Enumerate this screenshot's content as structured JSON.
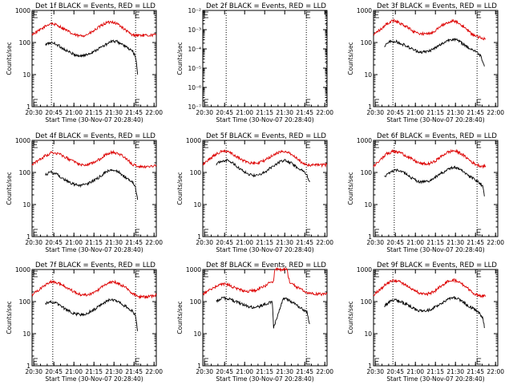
{
  "figure": {
    "ylabel": "Counts/sec",
    "xlabel": "Start Time (30-Nov-07 20:28:40)",
    "x_tick_labels": [
      "20:30",
      "20:45",
      "21:00",
      "21:15",
      "21:30",
      "21:45",
      "22:00"
    ],
    "series_colors": {
      "events": "#000000",
      "lld": "#dd0000"
    }
  },
  "chart_data": [
    {
      "type": "line",
      "title": "Det 1f BLACK = Events, RED = LLD",
      "yscale": "log",
      "ylim": [
        1,
        1000
      ],
      "y_tick_labels": [
        "1",
        "10",
        "100",
        "1000"
      ],
      "xlim_minutes": [
        0,
        93
      ],
      "markers": {
        "vlines": [
          14.5,
          77.5
        ],
        "brackets": [
          0,
          77.5
        ]
      },
      "series": [
        {
          "key": "lld",
          "color": "#dd0000",
          "x": [
            0,
            5,
            10,
            14,
            20,
            25,
            30,
            35,
            40,
            45,
            50,
            55,
            60,
            65,
            70,
            75,
            77,
            80,
            85,
            90,
            93
          ],
          "y": [
            180,
            230,
            320,
            400,
            330,
            250,
            185,
            160,
            170,
            210,
            300,
            400,
            450,
            360,
            240,
            170,
            170,
            170,
            165,
            170,
            175
          ]
        },
        {
          "key": "events",
          "color": "#000000",
          "x": [
            10,
            14,
            18,
            22,
            26,
            30,
            35,
            40,
            45,
            50,
            55,
            60,
            64,
            68,
            72,
            75,
            77,
            78,
            79
          ],
          "y": [
            85,
            100,
            90,
            70,
            55,
            45,
            38,
            40,
            50,
            65,
            85,
            110,
            105,
            85,
            65,
            55,
            40,
            25,
            10
          ]
        }
      ]
    },
    {
      "type": "line",
      "title": "Det 2f BLACK = Events, RED = LLD",
      "yscale": "log",
      "ylim": [
        1e-07,
        0.01
      ],
      "y_tick_labels": [
        "10⁻²",
        "10⁻³",
        "10⁻⁴",
        "10⁻⁵",
        "10⁻⁶",
        "10⁻⁷"
      ],
      "xlim_minutes": [
        0,
        93
      ],
      "markers": {
        "vlines": [
          17.5,
          77.5,
          92.5
        ],
        "brackets": [
          0,
          77.5
        ]
      },
      "series": []
    },
    {
      "type": "line",
      "title": "Det 3f BLACK = Events, RED = LLD",
      "yscale": "log",
      "ylim": [
        1,
        1000
      ],
      "y_tick_labels": [
        "1",
        "10",
        "100",
        "1000"
      ],
      "xlim_minutes": [
        0,
        93
      ],
      "markers": {
        "vlines": [
          14.5,
          77.5
        ],
        "brackets": [
          0,
          77.5
        ]
      },
      "series": [
        {
          "key": "lld",
          "color": "#dd0000",
          "x": [
            0,
            5,
            10,
            15,
            20,
            25,
            30,
            35,
            40,
            45,
            50,
            55,
            60,
            65,
            70,
            75,
            80,
            84
          ],
          "y": [
            180,
            250,
            380,
            480,
            400,
            300,
            220,
            190,
            185,
            220,
            320,
            420,
            480,
            380,
            240,
            170,
            140,
            130
          ]
        },
        {
          "key": "events",
          "color": "#000000",
          "x": [
            8,
            12,
            16,
            20,
            24,
            28,
            32,
            36,
            40,
            44,
            48,
            52,
            56,
            60,
            64,
            68,
            72,
            76,
            80,
            82,
            83
          ],
          "y": [
            75,
            105,
            110,
            95,
            80,
            65,
            55,
            50,
            52,
            60,
            75,
            95,
            120,
            130,
            110,
            85,
            65,
            55,
            40,
            25,
            18
          ]
        }
      ]
    },
    {
      "type": "line",
      "title": "Det 4f BLACK = Events, RED = LLD",
      "yscale": "log",
      "ylim": [
        1,
        1000
      ],
      "y_tick_labels": [
        "1",
        "10",
        "100",
        "1000"
      ],
      "xlim_minutes": [
        0,
        93
      ],
      "markers": {
        "vlines": [
          15.5,
          77.5
        ],
        "brackets": [
          0,
          77.5
        ]
      },
      "series": [
        {
          "key": "lld",
          "color": "#dd0000",
          "x": [
            0,
            5,
            10,
            15,
            20,
            25,
            30,
            35,
            40,
            45,
            50,
            55,
            60,
            65,
            70,
            75,
            80,
            85,
            90,
            93
          ],
          "y": [
            170,
            240,
            330,
            420,
            380,
            300,
            230,
            180,
            170,
            190,
            250,
            350,
            430,
            380,
            280,
            180,
            150,
            150,
            160,
            165
          ]
        },
        {
          "key": "events",
          "color": "#000000",
          "x": [
            10,
            14,
            18,
            22,
            26,
            30,
            34,
            38,
            42,
            46,
            50,
            54,
            58,
            62,
            66,
            70,
            74,
            77,
            78,
            79
          ],
          "y": [
            85,
            105,
            90,
            70,
            55,
            45,
            40,
            40,
            45,
            55,
            70,
            95,
            120,
            115,
            95,
            70,
            55,
            40,
            25,
            14
          ]
        }
      ]
    },
    {
      "type": "line",
      "title": "Det 5f BLACK = Events, RED = LLD",
      "yscale": "log",
      "ylim": [
        1,
        1000
      ],
      "y_tick_labels": [
        "1",
        "10",
        "100",
        "1000"
      ],
      "xlim_minutes": [
        0,
        93
      ],
      "markers": {
        "vlines": [
          17.5,
          77.5
        ],
        "brackets": [
          0,
          77.5
        ]
      },
      "series": [
        {
          "key": "lld",
          "color": "#dd0000",
          "x": [
            0,
            5,
            10,
            15,
            20,
            25,
            30,
            35,
            40,
            45,
            50,
            55,
            60,
            65,
            70,
            75,
            80,
            85,
            90,
            93
          ],
          "y": [
            180,
            260,
            380,
            470,
            420,
            320,
            240,
            200,
            190,
            220,
            300,
            400,
            470,
            400,
            280,
            190,
            170,
            170,
            170,
            175
          ]
        },
        {
          "key": "events",
          "color": "#000000",
          "x": [
            10,
            14,
            18,
            22,
            26,
            30,
            34,
            38,
            42,
            46,
            50,
            54,
            58,
            62,
            66,
            70,
            74,
            76,
            78,
            80
          ],
          "y": [
            180,
            230,
            240,
            200,
            150,
            110,
            90,
            80,
            85,
            100,
            130,
            170,
            220,
            240,
            200,
            150,
            120,
            100,
            80,
            50
          ]
        }
      ]
    },
    {
      "type": "line",
      "title": "Det 6f BLACK = Events, RED = LLD",
      "yscale": "log",
      "ylim": [
        1,
        1000
      ],
      "y_tick_labels": [
        "1",
        "10",
        "100",
        "1000"
      ],
      "xlim_minutes": [
        0,
        93
      ],
      "markers": {
        "vlines": [
          15.5,
          77.5
        ],
        "brackets": [
          0,
          77.5
        ]
      },
      "series": [
        {
          "key": "lld",
          "color": "#dd0000",
          "x": [
            0,
            5,
            10,
            15,
            20,
            25,
            30,
            35,
            40,
            45,
            50,
            55,
            60,
            65,
            70,
            75,
            80,
            84
          ],
          "y": [
            160,
            240,
            380,
            460,
            420,
            320,
            240,
            190,
            180,
            210,
            300,
            420,
            480,
            400,
            280,
            190,
            160,
            155
          ]
        },
        {
          "key": "events",
          "color": "#000000",
          "x": [
            8,
            12,
            16,
            20,
            24,
            28,
            32,
            36,
            40,
            44,
            48,
            52,
            56,
            60,
            64,
            68,
            72,
            76,
            80,
            82,
            83
          ],
          "y": [
            70,
            100,
            120,
            110,
            90,
            70,
            55,
            50,
            52,
            60,
            80,
            100,
            130,
            145,
            130,
            100,
            75,
            60,
            45,
            35,
            18
          ]
        }
      ]
    },
    {
      "type": "line",
      "title": "Det 7f BLACK = Events, RED = LLD",
      "yscale": "log",
      "ylim": [
        1,
        1000
      ],
      "y_tick_labels": [
        "1",
        "10",
        "100",
        "1000"
      ],
      "xlim_minutes": [
        0,
        93
      ],
      "markers": {
        "vlines": [
          15.5,
          77.5
        ],
        "brackets": [
          0,
          77.5
        ]
      },
      "series": [
        {
          "key": "lld",
          "color": "#dd0000",
          "x": [
            0,
            5,
            10,
            15,
            20,
            25,
            30,
            35,
            40,
            45,
            50,
            55,
            60,
            65,
            70,
            75,
            80,
            85,
            90,
            93
          ],
          "y": [
            160,
            230,
            330,
            420,
            370,
            290,
            220,
            170,
            160,
            180,
            240,
            340,
            420,
            370,
            270,
            180,
            140,
            140,
            150,
            160
          ]
        },
        {
          "key": "events",
          "color": "#000000",
          "x": [
            10,
            14,
            18,
            22,
            26,
            30,
            34,
            38,
            42,
            46,
            50,
            54,
            58,
            62,
            66,
            70,
            74,
            77,
            78,
            79
          ],
          "y": [
            85,
            100,
            90,
            70,
            55,
            45,
            40,
            40,
            45,
            55,
            70,
            90,
            115,
            110,
            90,
            70,
            55,
            40,
            25,
            12
          ]
        }
      ]
    },
    {
      "type": "line",
      "title": "Det 8f BLACK = Events, RED = LLD",
      "yscale": "log",
      "ylim": [
        1,
        1000
      ],
      "y_tick_labels": [
        "1",
        "10",
        "100",
        "1000"
      ],
      "xlim_minutes": [
        0,
        93
      ],
      "markers": {
        "vlines": [
          17.5,
          77.5
        ],
        "brackets": [
          0,
          77.5
        ]
      },
      "series": [
        {
          "key": "lld",
          "color": "#dd0000",
          "x": [
            0,
            5,
            10,
            15,
            20,
            25,
            30,
            35,
            40,
            45,
            50,
            53,
            54,
            58,
            62,
            63,
            65,
            70,
            75,
            80,
            85,
            90,
            93
          ],
          "y": [
            170,
            230,
            300,
            360,
            320,
            260,
            220,
            210,
            230,
            280,
            380,
            430,
            1000,
            1000,
            1000,
            1000,
            400,
            290,
            220,
            180,
            170,
            170,
            175
          ]
        },
        {
          "key": "events",
          "color": "#000000",
          "x": [
            10,
            14,
            18,
            22,
            26,
            30,
            34,
            38,
            42,
            46,
            50,
            52,
            53,
            60,
            62,
            66,
            70,
            74,
            78,
            80
          ],
          "y": [
            100,
            130,
            125,
            110,
            95,
            80,
            70,
            65,
            70,
            80,
            95,
            100,
            15,
            120,
            130,
            100,
            80,
            60,
            45,
            20
          ]
        }
      ]
    },
    {
      "type": "line",
      "title": "Det 9f BLACK = Events, RED = LLD",
      "yscale": "log",
      "ylim": [
        1,
        1000
      ],
      "y_tick_labels": [
        "1",
        "10",
        "100",
        "1000"
      ],
      "xlim_minutes": [
        0,
        93
      ],
      "markers": {
        "vlines": [
          14.5,
          77.5
        ],
        "brackets": [
          0,
          77.5
        ]
      },
      "series": [
        {
          "key": "lld",
          "color": "#dd0000",
          "x": [
            0,
            5,
            10,
            15,
            20,
            25,
            30,
            35,
            40,
            45,
            50,
            55,
            60,
            65,
            70,
            75,
            80,
            84
          ],
          "y": [
            160,
            240,
            370,
            460,
            410,
            310,
            230,
            180,
            170,
            200,
            290,
            410,
            470,
            390,
            270,
            180,
            150,
            150
          ]
        },
        {
          "key": "events",
          "color": "#000000",
          "x": [
            8,
            12,
            16,
            20,
            24,
            28,
            32,
            36,
            40,
            44,
            48,
            52,
            56,
            60,
            64,
            68,
            72,
            76,
            80,
            82,
            83
          ],
          "y": [
            70,
            100,
            115,
            100,
            85,
            70,
            55,
            50,
            52,
            60,
            75,
            95,
            120,
            130,
            115,
            90,
            70,
            55,
            40,
            30,
            15
          ]
        }
      ]
    }
  ]
}
